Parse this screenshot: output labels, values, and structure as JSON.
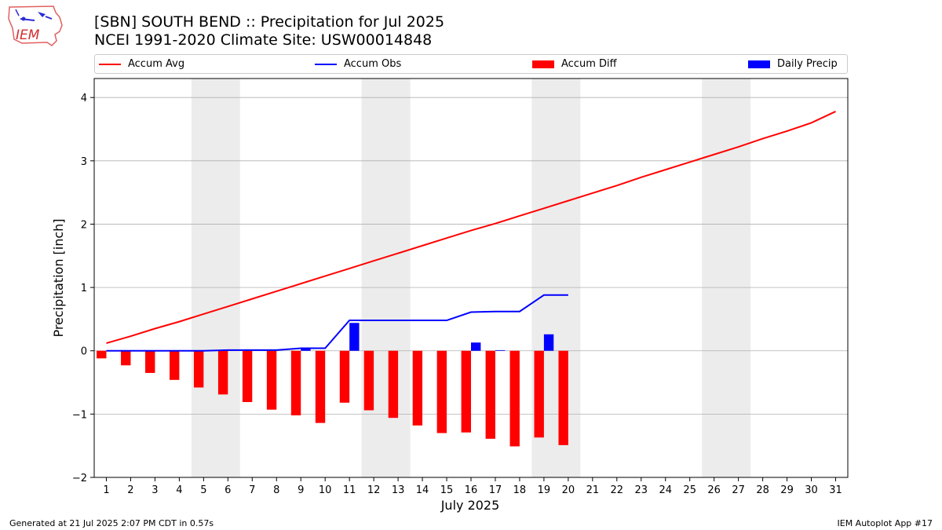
{
  "header": {
    "title_line1": "[SBN] SOUTH BEND :: Precipitation for Jul 2025",
    "title_line2": "NCEI 1991-2020 Climate Site: USW00014848",
    "logo_text": "IEM"
  },
  "footer": {
    "left": "Generated at 21 Jul 2025 2:07 PM CDT in 0.57s",
    "right": "IEM Autoplot App #17"
  },
  "legend": {
    "accum_avg": "Accum Avg",
    "accum_obs": "Accum Obs",
    "accum_diff": "Accum Diff",
    "daily_precip": "Daily Precip"
  },
  "colors": {
    "avg": "#ff0000",
    "obs": "#0000ff",
    "diff": "#ff0000",
    "daily": "#0000ff",
    "weekend": "#ececec",
    "grid": "#b0b0b0"
  },
  "chart_data": {
    "type": "bar",
    "xlabel": "July 2025",
    "ylabel": "Precipitation [inch]",
    "ylim": [
      -2,
      4.3
    ],
    "xlim": [
      0.5,
      31.5
    ],
    "yticks": [
      -2,
      -1,
      0,
      1,
      2,
      3,
      4
    ],
    "ytick_labels": [
      "−2",
      "−1",
      "0",
      "1",
      "2",
      "3",
      "4"
    ],
    "days": [
      1,
      2,
      3,
      4,
      5,
      6,
      7,
      8,
      9,
      10,
      11,
      12,
      13,
      14,
      15,
      16,
      17,
      18,
      19,
      20,
      21,
      22,
      23,
      24,
      25,
      26,
      27,
      28,
      29,
      30,
      31
    ],
    "weekend_days": [
      5,
      6,
      12,
      13,
      19,
      20,
      26,
      27
    ],
    "grid": "horizontal",
    "legend_position": "top",
    "series": [
      {
        "name": "Accum Avg",
        "type": "line",
        "values": [
          0.12,
          0.23,
          0.35,
          0.46,
          0.58,
          0.7,
          0.82,
          0.94,
          1.06,
          1.18,
          1.3,
          1.42,
          1.54,
          1.66,
          1.78,
          1.9,
          2.01,
          2.13,
          2.25,
          2.37,
          2.49,
          2.61,
          2.74,
          2.86,
          2.98,
          3.1,
          3.22,
          3.35,
          3.47,
          3.6,
          3.78
        ]
      },
      {
        "name": "Accum Obs",
        "type": "line",
        "values": [
          0.0,
          0.0,
          0.0,
          0.0,
          0.0,
          0.01,
          0.01,
          0.01,
          0.04,
          0.04,
          0.48,
          0.48,
          0.48,
          0.48,
          0.48,
          0.61,
          0.62,
          0.62,
          0.88,
          0.88
        ]
      },
      {
        "name": "Accum Diff",
        "type": "bar",
        "values": [
          -0.12,
          -0.23,
          -0.35,
          -0.46,
          -0.58,
          -0.69,
          -0.81,
          -0.93,
          -1.02,
          -1.14,
          -0.82,
          -0.94,
          -1.06,
          -1.18,
          -1.3,
          -1.29,
          -1.39,
          -1.51,
          -1.37,
          -1.49
        ]
      },
      {
        "name": "Daily Precip",
        "type": "bar",
        "values": [
          0.0,
          0.0,
          0.0,
          0.0,
          0.0,
          0.01,
          0.0,
          0.0,
          0.03,
          0.0,
          0.44,
          0.0,
          0.0,
          0.0,
          0.0,
          0.13,
          0.01,
          0.0,
          0.26,
          0.0
        ]
      }
    ]
  }
}
